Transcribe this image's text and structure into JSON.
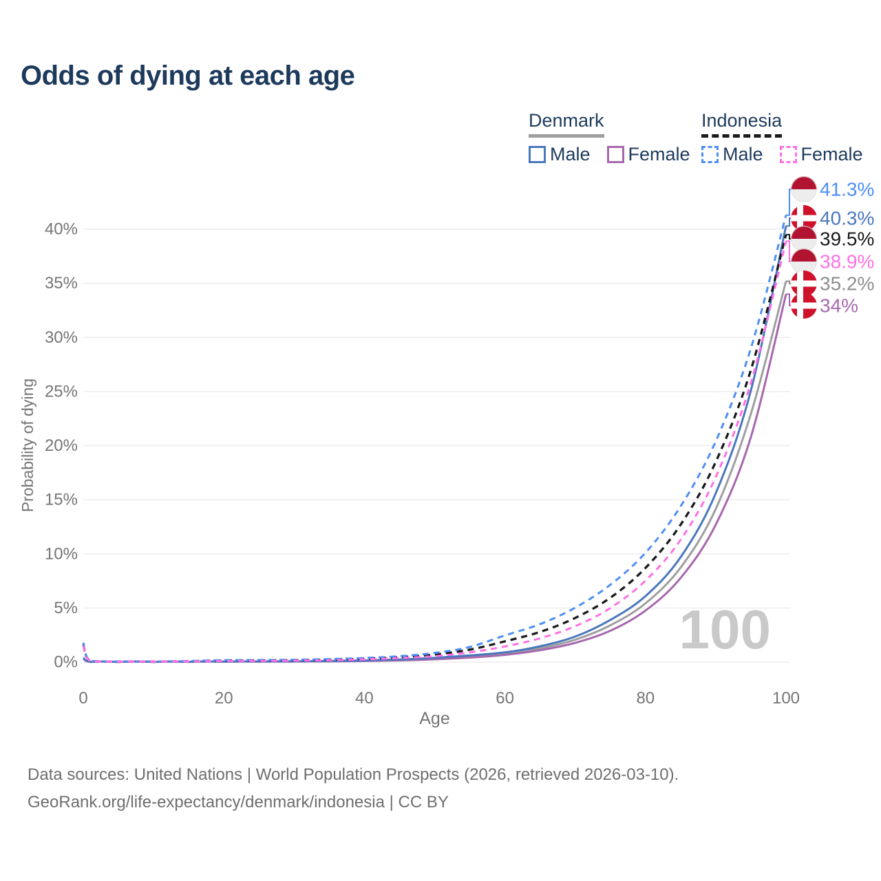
{
  "title": "Odds of dying at each age",
  "legend": {
    "groups": [
      {
        "name": "Denmark",
        "style": "solid",
        "underline_color": "#9e9e9e",
        "items": [
          {
            "label": "Male",
            "color": "#4a77bd"
          },
          {
            "label": "Female",
            "color": "#a667ad"
          }
        ]
      },
      {
        "name": "Indonesia",
        "style": "dashed",
        "underline_color": "#1a1a1a",
        "items": [
          {
            "label": "Male",
            "color": "#4d8ef7"
          },
          {
            "label": "Female",
            "color": "#ff70e4"
          }
        ]
      }
    ]
  },
  "watermark": "100",
  "footer": {
    "line1": "Data sources: United Nations | World Population Prospects (2026, retrieved 2026-03-10).",
    "line2": "GeoRank.org/life-expectancy/denmark/indonesia | CC BY"
  },
  "chart_data": {
    "type": "line",
    "title": "Odds of dying at each age",
    "xlabel": "Age",
    "ylabel": "Probability of dying",
    "xlim": [
      0,
      100
    ],
    "ylim": [
      0,
      43
    ],
    "grid": "horizontal-only",
    "x_ticks": [
      0,
      20,
      40,
      60,
      80,
      100
    ],
    "y_tick_values": [
      0,
      5,
      10,
      15,
      20,
      25,
      30,
      35,
      40
    ],
    "y_ticks": [
      "0%",
      "5%",
      "10%",
      "15%",
      "20%",
      "25%",
      "30%",
      "35%",
      "40%"
    ],
    "x": [
      0,
      1,
      5,
      10,
      15,
      20,
      25,
      30,
      35,
      40,
      45,
      50,
      55,
      60,
      65,
      70,
      75,
      80,
      85,
      90,
      95,
      100
    ],
    "unit": "percent",
    "series": [
      {
        "name": "Denmark",
        "sex": "both",
        "color": "#9e9e9e",
        "line": "solid",
        "end_value": 35.2,
        "values": [
          0.37,
          0.025,
          0.01,
          0.01,
          0.025,
          0.045,
          0.055,
          0.065,
          0.085,
          0.125,
          0.2,
          0.33,
          0.52,
          0.79,
          1.28,
          2.07,
          3.4,
          5.43,
          8.74,
          14.15,
          22.95,
          35.2
        ]
      },
      {
        "name": "Denmark Female",
        "sex": "female",
        "color": "#a667ad",
        "line": "solid",
        "end_value": 34,
        "values": [
          0.33,
          0.02,
          0.01,
          0.01,
          0.02,
          0.03,
          0.04,
          0.05,
          0.07,
          0.1,
          0.16,
          0.26,
          0.42,
          0.67,
          1.1,
          1.78,
          2.9,
          4.76,
          7.78,
          12.7,
          20.8,
          34
        ]
      },
      {
        "name": "Denmark Male",
        "sex": "male",
        "color": "#4a77bd",
        "line": "solid",
        "end_value": 40.3,
        "values": [
          0.4,
          0.03,
          0.01,
          0.01,
          0.03,
          0.06,
          0.07,
          0.08,
          0.1,
          0.15,
          0.25,
          0.4,
          0.62,
          0.9,
          1.46,
          2.36,
          3.9,
          6.1,
          9.7,
          15.6,
          25.1,
          40.3
        ]
      },
      {
        "name": "Indonesia",
        "sex": "both",
        "color": "#1a1a1a",
        "line": "dashed",
        "end_value": 39.5,
        "values": [
          1.65,
          0.11,
          0.045,
          0.045,
          0.08,
          0.14,
          0.16,
          0.18,
          0.23,
          0.32,
          0.46,
          0.7,
          1.15,
          1.92,
          2.79,
          4.08,
          5.95,
          8.7,
          12.7,
          18.5,
          27,
          39.5
        ]
      },
      {
        "name": "Indonesia Male",
        "sex": "male",
        "color": "#4d8ef7",
        "line": "dashed",
        "end_value": 41.3,
        "values": [
          1.8,
          0.12,
          0.05,
          0.05,
          0.1,
          0.18,
          0.2,
          0.22,
          0.28,
          0.38,
          0.55,
          0.85,
          1.4,
          2.47,
          3.51,
          5.03,
          7.15,
          10.1,
          14.4,
          20.4,
          29,
          41.3
        ]
      },
      {
        "name": "Indonesia Female",
        "sex": "female",
        "color": "#ff70e4",
        "line": "dashed",
        "end_value": 38.9,
        "values": [
          1.5,
          0.1,
          0.04,
          0.04,
          0.06,
          0.1,
          0.12,
          0.14,
          0.18,
          0.26,
          0.38,
          0.55,
          0.9,
          1.45,
          2.2,
          3.32,
          5,
          7.53,
          11.3,
          17.1,
          25.8,
          38.9
        ]
      }
    ],
    "end_labels": [
      {
        "text": "41.3%",
        "value": 41.3,
        "series": "Indonesia Male",
        "flag": "indonesia",
        "color": "#4d8ef7"
      },
      {
        "text": "40.3%",
        "value": 40.3,
        "series": "Denmark Male",
        "flag": "denmark",
        "color": "#4a77bd"
      },
      {
        "text": "39.5%",
        "value": 39.5,
        "series": "Indonesia",
        "flag": "indonesia",
        "color": "#1a1a1a"
      },
      {
        "text": "38.9%",
        "value": 38.9,
        "series": "Indonesia Female",
        "flag": "indonesia",
        "color": "#ff70e4"
      },
      {
        "text": "35.2%",
        "value": 35.2,
        "series": "Denmark",
        "flag": "denmark",
        "color": "#8e8e8e"
      },
      {
        "text": "34%",
        "value": 34,
        "series": "Denmark Female",
        "flag": "denmark",
        "color": "#a667ad"
      }
    ],
    "colors": {
      "grid": "#ececec",
      "axis_text": "#757575",
      "watermark": "#c9c9c9",
      "flag_red_denmark": "#d0112b",
      "flag_red_indonesia": "#b11330"
    }
  }
}
